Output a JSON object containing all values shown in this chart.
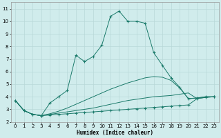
{
  "xlabel": "Humidex (Indice chaleur)",
  "bg_color": "#d0ecec",
  "grid_color": "#b8d8d8",
  "line_color": "#1a7a6a",
  "xlim": [
    -0.5,
    23.5
  ],
  "ylim": [
    2,
    11.5
  ],
  "yticks": [
    2,
    3,
    4,
    5,
    6,
    7,
    8,
    9,
    10,
    11
  ],
  "xticks": [
    0,
    1,
    2,
    3,
    4,
    5,
    6,
    7,
    8,
    9,
    10,
    11,
    12,
    13,
    14,
    15,
    16,
    17,
    18,
    19,
    20,
    21,
    22,
    23
  ],
  "series": [
    {
      "x": [
        0,
        1,
        2,
        3,
        4,
        5,
        6,
        7,
        8,
        9,
        10,
        11,
        12,
        13,
        14,
        15,
        16,
        17,
        18,
        19,
        20,
        21,
        22,
        23
      ],
      "y": [
        3.7,
        2.9,
        2.6,
        2.5,
        2.55,
        2.6,
        2.65,
        2.7,
        2.75,
        2.8,
        2.85,
        2.9,
        2.95,
        3.0,
        3.05,
        3.1,
        3.15,
        3.2,
        3.25,
        3.3,
        3.35,
        3.85,
        3.95,
        4.0
      ],
      "marker": true
    },
    {
      "x": [
        0,
        1,
        2,
        3,
        4,
        5,
        6,
        7,
        8,
        9,
        10,
        11,
        12,
        13,
        14,
        15,
        16,
        17,
        18,
        19,
        20,
        21,
        22,
        23
      ],
      "y": [
        3.7,
        2.9,
        2.6,
        2.5,
        2.6,
        2.7,
        2.8,
        2.9,
        3.0,
        3.1,
        3.25,
        3.4,
        3.55,
        3.7,
        3.8,
        3.9,
        4.0,
        4.05,
        4.1,
        4.2,
        4.3,
        3.85,
        3.95,
        4.0
      ],
      "marker": false
    },
    {
      "x": [
        0,
        1,
        2,
        3,
        4,
        5,
        6,
        7,
        8,
        9,
        10,
        11,
        12,
        13,
        14,
        15,
        16,
        17,
        18,
        19,
        20,
        21,
        22,
        23
      ],
      "y": [
        3.7,
        2.9,
        2.6,
        2.5,
        2.65,
        2.85,
        3.1,
        3.4,
        3.7,
        4.0,
        4.3,
        4.6,
        4.85,
        5.1,
        5.3,
        5.5,
        5.6,
        5.55,
        5.3,
        4.7,
        3.85,
        3.9,
        4.0,
        4.0
      ],
      "marker": false
    },
    {
      "x": [
        0,
        1,
        2,
        3,
        4,
        5,
        6,
        7,
        8,
        9,
        10,
        11,
        12,
        13,
        14,
        15,
        16,
        17,
        18,
        19,
        20,
        21,
        22,
        23
      ],
      "y": [
        3.7,
        2.9,
        2.6,
        2.5,
        3.5,
        4.0,
        4.5,
        7.3,
        6.8,
        7.2,
        8.1,
        10.4,
        10.8,
        10.0,
        10.0,
        9.85,
        7.5,
        6.5,
        5.5,
        4.75,
        3.85,
        3.9,
        4.0,
        4.0
      ],
      "marker": true
    }
  ]
}
